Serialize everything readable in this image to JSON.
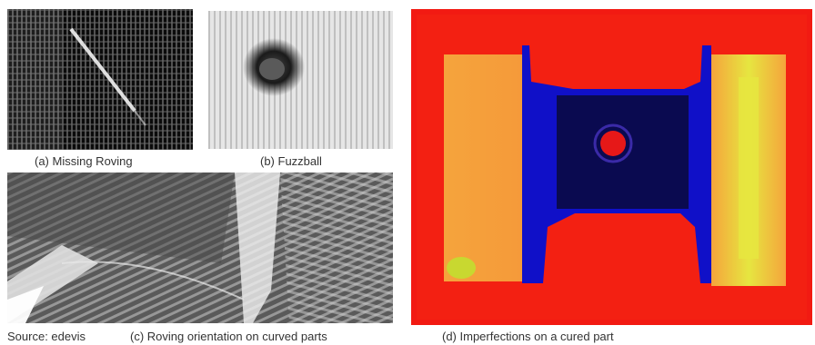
{
  "captions": {
    "a": "(a) Missing Roving",
    "b": "(b) Fuzzball",
    "c": "(c) Roving orientation on curved parts",
    "d": "(d) Imperfections on a cured part",
    "source": "Source: edevis"
  },
  "colors": {
    "background": "#ffffff",
    "caption_text": "#333333",
    "thermo_red": "#f21a12",
    "thermo_orange": "#f5a43c",
    "thermo_yellow": "#e6e640",
    "thermo_blue": "#1010c8",
    "thermo_navy": "#0a0a50"
  }
}
